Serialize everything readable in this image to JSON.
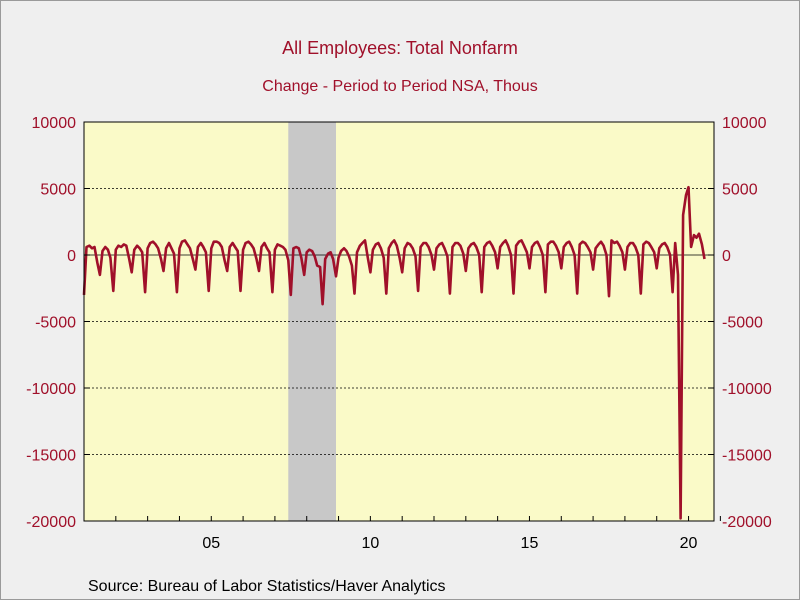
{
  "chart_data": {
    "type": "line",
    "title": "All Employees: Total Nonfarm",
    "subtitle": "Change - Period to Period    NSA, Thous",
    "source": "Source:  Bureau of Labor Statistics/Haver Analytics",
    "ylim": [
      -20000,
      10000
    ],
    "y_ticks": [
      10000,
      5000,
      0,
      -5000,
      -10000,
      -15000,
      -20000
    ],
    "y_tick_labels": [
      "10000",
      "5000",
      "0",
      "-5000",
      "-10000",
      "-15000",
      "-20000"
    ],
    "x_ticks": [
      {
        "value": 2005.0,
        "label": "05"
      },
      {
        "value": 2010.0,
        "label": "10"
      },
      {
        "value": 2015.0,
        "label": "15"
      },
      {
        "value": 2020.0,
        "label": "20"
      }
    ],
    "xlim": [
      2001.5,
      2021.3
    ],
    "grid": {
      "horizontal_dashed": true
    },
    "recession_shading": [
      [
        2007.92,
        2009.42
      ]
    ],
    "colors": {
      "line": "#a0102a",
      "plot_bg": "#fafac8",
      "recession": "#c8c8c8",
      "text_red": "#a0102a"
    },
    "series": [
      {
        "name": "",
        "values": [
          [
            2001.5,
            -3000
          ],
          [
            2001.58,
            600
          ],
          [
            2001.67,
            700
          ],
          [
            2001.75,
            500
          ],
          [
            2001.83,
            600
          ],
          [
            2001.92,
            -600
          ],
          [
            2002.0,
            -1500
          ],
          [
            2002.08,
            300
          ],
          [
            2002.17,
            600
          ],
          [
            2002.25,
            400
          ],
          [
            2002.33,
            -200
          ],
          [
            2002.42,
            -2700
          ],
          [
            2002.5,
            400
          ],
          [
            2002.58,
            700
          ],
          [
            2002.67,
            600
          ],
          [
            2002.75,
            800
          ],
          [
            2002.83,
            700
          ],
          [
            2002.92,
            -300
          ],
          [
            2003.0,
            -1300
          ],
          [
            2003.08,
            400
          ],
          [
            2003.17,
            700
          ],
          [
            2003.25,
            500
          ],
          [
            2003.33,
            200
          ],
          [
            2003.42,
            -2800
          ],
          [
            2003.5,
            500
          ],
          [
            2003.58,
            900
          ],
          [
            2003.67,
            1000
          ],
          [
            2003.75,
            800
          ],
          [
            2003.83,
            500
          ],
          [
            2003.92,
            -300
          ],
          [
            2004.0,
            -1200
          ],
          [
            2004.08,
            500
          ],
          [
            2004.17,
            900
          ],
          [
            2004.25,
            500
          ],
          [
            2004.33,
            100
          ],
          [
            2004.42,
            -2800
          ],
          [
            2004.5,
            500
          ],
          [
            2004.58,
            1000
          ],
          [
            2004.67,
            1100
          ],
          [
            2004.75,
            800
          ],
          [
            2004.83,
            500
          ],
          [
            2004.92,
            -300
          ],
          [
            2005.0,
            -1100
          ],
          [
            2005.08,
            600
          ],
          [
            2005.17,
            900
          ],
          [
            2005.25,
            600
          ],
          [
            2005.33,
            200
          ],
          [
            2005.42,
            -2700
          ],
          [
            2005.5,
            500
          ],
          [
            2005.58,
            1000
          ],
          [
            2005.67,
            1000
          ],
          [
            2005.75,
            900
          ],
          [
            2005.83,
            600
          ],
          [
            2005.92,
            -400
          ],
          [
            2006.0,
            -1200
          ],
          [
            2006.08,
            600
          ],
          [
            2006.17,
            900
          ],
          [
            2006.25,
            600
          ],
          [
            2006.33,
            300
          ],
          [
            2006.42,
            -2700
          ],
          [
            2006.5,
            400
          ],
          [
            2006.58,
            900
          ],
          [
            2006.67,
            1000
          ],
          [
            2006.75,
            800
          ],
          [
            2006.83,
            500
          ],
          [
            2006.92,
            -300
          ],
          [
            2007.0,
            -1200
          ],
          [
            2007.08,
            600
          ],
          [
            2007.17,
            900
          ],
          [
            2007.25,
            500
          ],
          [
            2007.33,
            200
          ],
          [
            2007.42,
            -2800
          ],
          [
            2007.5,
            400
          ],
          [
            2007.58,
            800
          ],
          [
            2007.67,
            700
          ],
          [
            2007.75,
            600
          ],
          [
            2007.83,
            400
          ],
          [
            2007.92,
            -400
          ],
          [
            2008.0,
            -3000
          ],
          [
            2008.08,
            500
          ],
          [
            2008.17,
            600
          ],
          [
            2008.25,
            500
          ],
          [
            2008.33,
            -200
          ],
          [
            2008.42,
            -1500
          ],
          [
            2008.5,
            200
          ],
          [
            2008.58,
            400
          ],
          [
            2008.67,
            300
          ],
          [
            2008.75,
            -100
          ],
          [
            2008.83,
            -800
          ],
          [
            2008.92,
            -900
          ],
          [
            2009.0,
            -3700
          ],
          [
            2009.08,
            -300
          ],
          [
            2009.17,
            100
          ],
          [
            2009.25,
            200
          ],
          [
            2009.33,
            -300
          ],
          [
            2009.42,
            -1600
          ],
          [
            2009.5,
            -200
          ],
          [
            2009.58,
            300
          ],
          [
            2009.67,
            500
          ],
          [
            2009.75,
            300
          ],
          [
            2009.83,
            -100
          ],
          [
            2009.92,
            -800
          ],
          [
            2010.0,
            -2900
          ],
          [
            2010.08,
            200
          ],
          [
            2010.17,
            700
          ],
          [
            2010.25,
            900
          ],
          [
            2010.33,
            1100
          ],
          [
            2010.42,
            -200
          ],
          [
            2010.5,
            -1300
          ],
          [
            2010.58,
            400
          ],
          [
            2010.67,
            800
          ],
          [
            2010.75,
            900
          ],
          [
            2010.83,
            500
          ],
          [
            2010.92,
            -200
          ],
          [
            2011.0,
            -2900
          ],
          [
            2011.08,
            500
          ],
          [
            2011.17,
            900
          ],
          [
            2011.25,
            1100
          ],
          [
            2011.33,
            700
          ],
          [
            2011.42,
            -200
          ],
          [
            2011.5,
            -1300
          ],
          [
            2011.58,
            500
          ],
          [
            2011.67,
            900
          ],
          [
            2011.75,
            800
          ],
          [
            2011.83,
            500
          ],
          [
            2011.92,
            -100
          ],
          [
            2012.0,
            -2700
          ],
          [
            2012.08,
            600
          ],
          [
            2012.17,
            900
          ],
          [
            2012.25,
            900
          ],
          [
            2012.33,
            600
          ],
          [
            2012.42,
            0
          ],
          [
            2012.5,
            -1100
          ],
          [
            2012.58,
            500
          ],
          [
            2012.67,
            800
          ],
          [
            2012.75,
            900
          ],
          [
            2012.83,
            500
          ],
          [
            2012.92,
            -100
          ],
          [
            2013.0,
            -2900
          ],
          [
            2013.08,
            600
          ],
          [
            2013.17,
            900
          ],
          [
            2013.25,
            900
          ],
          [
            2013.33,
            700
          ],
          [
            2013.42,
            100
          ],
          [
            2013.5,
            -1200
          ],
          [
            2013.58,
            500
          ],
          [
            2013.67,
            800
          ],
          [
            2013.75,
            900
          ],
          [
            2013.83,
            600
          ],
          [
            2013.92,
            0
          ],
          [
            2014.0,
            -2800
          ],
          [
            2014.08,
            600
          ],
          [
            2014.17,
            900
          ],
          [
            2014.25,
            1000
          ],
          [
            2014.33,
            700
          ],
          [
            2014.42,
            200
          ],
          [
            2014.5,
            -1000
          ],
          [
            2014.58,
            600
          ],
          [
            2014.67,
            900
          ],
          [
            2014.75,
            1100
          ],
          [
            2014.83,
            700
          ],
          [
            2014.92,
            0
          ],
          [
            2015.0,
            -2900
          ],
          [
            2015.08,
            700
          ],
          [
            2015.17,
            1000
          ],
          [
            2015.25,
            1100
          ],
          [
            2015.33,
            700
          ],
          [
            2015.42,
            200
          ],
          [
            2015.5,
            -1000
          ],
          [
            2015.58,
            600
          ],
          [
            2015.67,
            900
          ],
          [
            2015.75,
            1000
          ],
          [
            2015.83,
            600
          ],
          [
            2015.92,
            0
          ],
          [
            2016.0,
            -2800
          ],
          [
            2016.08,
            800
          ],
          [
            2016.17,
            1000
          ],
          [
            2016.25,
            1000
          ],
          [
            2016.33,
            700
          ],
          [
            2016.42,
            200
          ],
          [
            2016.5,
            -1000
          ],
          [
            2016.58,
            600
          ],
          [
            2016.67,
            900
          ],
          [
            2016.75,
            1000
          ],
          [
            2016.83,
            600
          ],
          [
            2016.92,
            0
          ],
          [
            2017.0,
            -2900
          ],
          [
            2017.08,
            800
          ],
          [
            2017.17,
            1000
          ],
          [
            2017.25,
            900
          ],
          [
            2017.33,
            600
          ],
          [
            2017.42,
            200
          ],
          [
            2017.5,
            -1100
          ],
          [
            2017.58,
            500
          ],
          [
            2017.67,
            800
          ],
          [
            2017.75,
            1000
          ],
          [
            2017.83,
            700
          ],
          [
            2017.92,
            0
          ],
          [
            2018.0,
            -3100
          ],
          [
            2018.08,
            1100
          ],
          [
            2018.17,
            900
          ],
          [
            2018.25,
            1000
          ],
          [
            2018.33,
            700
          ],
          [
            2018.42,
            200
          ],
          [
            2018.5,
            -1100
          ],
          [
            2018.58,
            600
          ],
          [
            2018.67,
            900
          ],
          [
            2018.75,
            900
          ],
          [
            2018.83,
            600
          ],
          [
            2018.92,
            0
          ],
          [
            2019.0,
            -2900
          ],
          [
            2019.08,
            800
          ],
          [
            2019.17,
            1000
          ],
          [
            2019.25,
            900
          ],
          [
            2019.33,
            600
          ],
          [
            2019.42,
            200
          ],
          [
            2019.5,
            -1000
          ],
          [
            2019.58,
            500
          ],
          [
            2019.67,
            800
          ],
          [
            2019.75,
            900
          ],
          [
            2019.83,
            600
          ],
          [
            2019.92,
            0
          ],
          [
            2020.0,
            -2800
          ],
          [
            2020.08,
            900
          ],
          [
            2020.17,
            -1500
          ],
          [
            2020.25,
            -19800
          ],
          [
            2020.33,
            3000
          ],
          [
            2020.42,
            4500
          ],
          [
            2020.5,
            5100
          ],
          [
            2020.58,
            600
          ],
          [
            2020.67,
            1500
          ],
          [
            2020.75,
            1300
          ],
          [
            2020.83,
            1600
          ],
          [
            2020.92,
            800
          ],
          [
            2021.0,
            -300
          ]
        ]
      }
    ]
  }
}
